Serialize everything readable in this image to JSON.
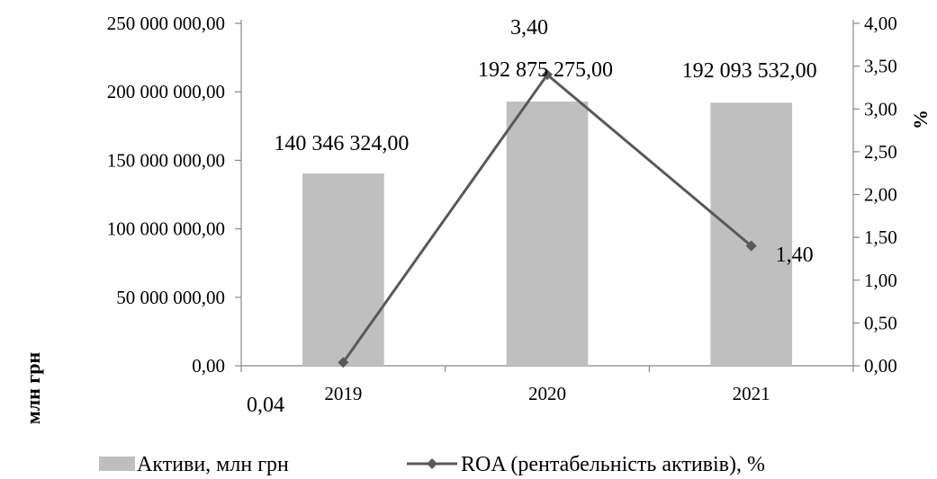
{
  "chart_data": {
    "type": "bar",
    "title": "",
    "categories": [
      "2019",
      "2020",
      "2021"
    ],
    "left_axis": {
      "label": "млн грн",
      "range": [
        0,
        250000000
      ],
      "ticks": [
        0,
        50000000,
        100000000,
        150000000,
        200000000,
        250000000
      ],
      "tick_labels": [
        "0,00",
        "50 000 000,00",
        "100 000 000,00",
        "150 000 000,00",
        "200 000 000,00",
        "250 000 000,00"
      ]
    },
    "right_axis": {
      "label": "%",
      "range": [
        0,
        4
      ],
      "ticks": [
        0,
        0.5,
        1,
        1.5,
        2,
        2.5,
        3,
        3.5,
        4
      ],
      "tick_labels": [
        "0,00",
        "0,50",
        "1,00",
        "1,50",
        "2,00",
        "2,50",
        "3,00",
        "3,50",
        "4,00"
      ]
    },
    "series": [
      {
        "name": "Активи, млн грн",
        "type": "bar",
        "axis": "left",
        "color": "#bfbfbf",
        "values": [
          140346324,
          192875275,
          192093532
        ],
        "data_labels": [
          "140 346 324,00",
          "192 875 275,00",
          "192 093 532,00"
        ]
      },
      {
        "name": "ROA (рентабельність активів), %",
        "type": "line",
        "axis": "right",
        "color": "#595959",
        "marker": "diamond",
        "values": [
          0.04,
          3.4,
          1.4
        ],
        "data_labels": [
          "0,04",
          "3,40",
          "1,40"
        ]
      }
    ],
    "grid": false,
    "legend_position": "bottom"
  }
}
